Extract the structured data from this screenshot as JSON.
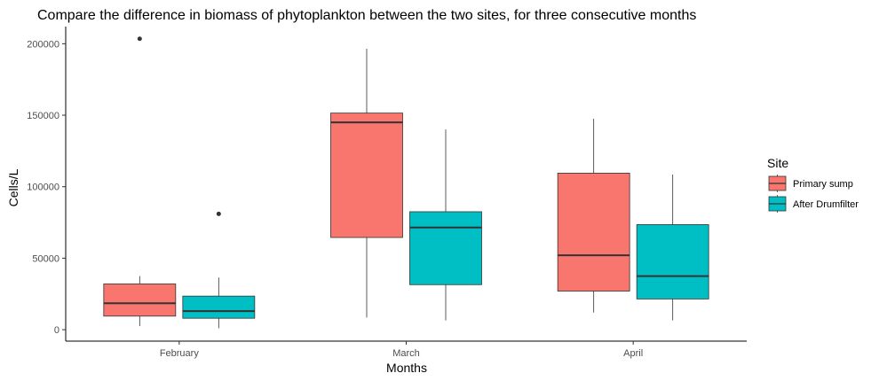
{
  "chart_data": {
    "type": "boxplot",
    "title": "Compare the difference in biomass of phytoplankton between the two sites, for three consecutive months",
    "xlabel": "Months",
    "ylabel": "Cells/L",
    "categories": [
      "February",
      "March",
      "April"
    ],
    "ylim": [
      -8000,
      212000
    ],
    "yticks": [
      0,
      50000,
      100000,
      150000,
      200000
    ],
    "ytick_labels": [
      "0",
      "50000",
      "100000",
      "150000",
      "200000"
    ],
    "grid": false,
    "legend": {
      "title": "Site",
      "placement": "right",
      "entries": [
        "Primary sump",
        "After Drumfilter"
      ]
    },
    "series": [
      {
        "name": "Primary sump",
        "color": "#F8766D",
        "boxes": [
          {
            "min": 2500,
            "q1": 9500,
            "median": 18500,
            "q3": 32000,
            "max": 37500,
            "outliers": [
              203500
            ]
          },
          {
            "min": 8500,
            "q1": 64500,
            "median": 145000,
            "q3": 151500,
            "max": 196500,
            "outliers": []
          },
          {
            "min": 12000,
            "q1": 27000,
            "median": 52000,
            "q3": 109500,
            "max": 147500,
            "outliers": []
          }
        ]
      },
      {
        "name": "After Drumfilter",
        "color": "#00BFC4",
        "boxes": [
          {
            "min": 1000,
            "q1": 8000,
            "median": 13000,
            "q3": 23500,
            "max": 36500,
            "outliers": [
              81000
            ]
          },
          {
            "min": 6500,
            "q1": 31500,
            "median": 71500,
            "q3": 82500,
            "max": 140000,
            "outliers": []
          },
          {
            "min": 6500,
            "q1": 21500,
            "median": 37500,
            "q3": 73500,
            "max": 108500,
            "outliers": []
          }
        ]
      }
    ]
  }
}
